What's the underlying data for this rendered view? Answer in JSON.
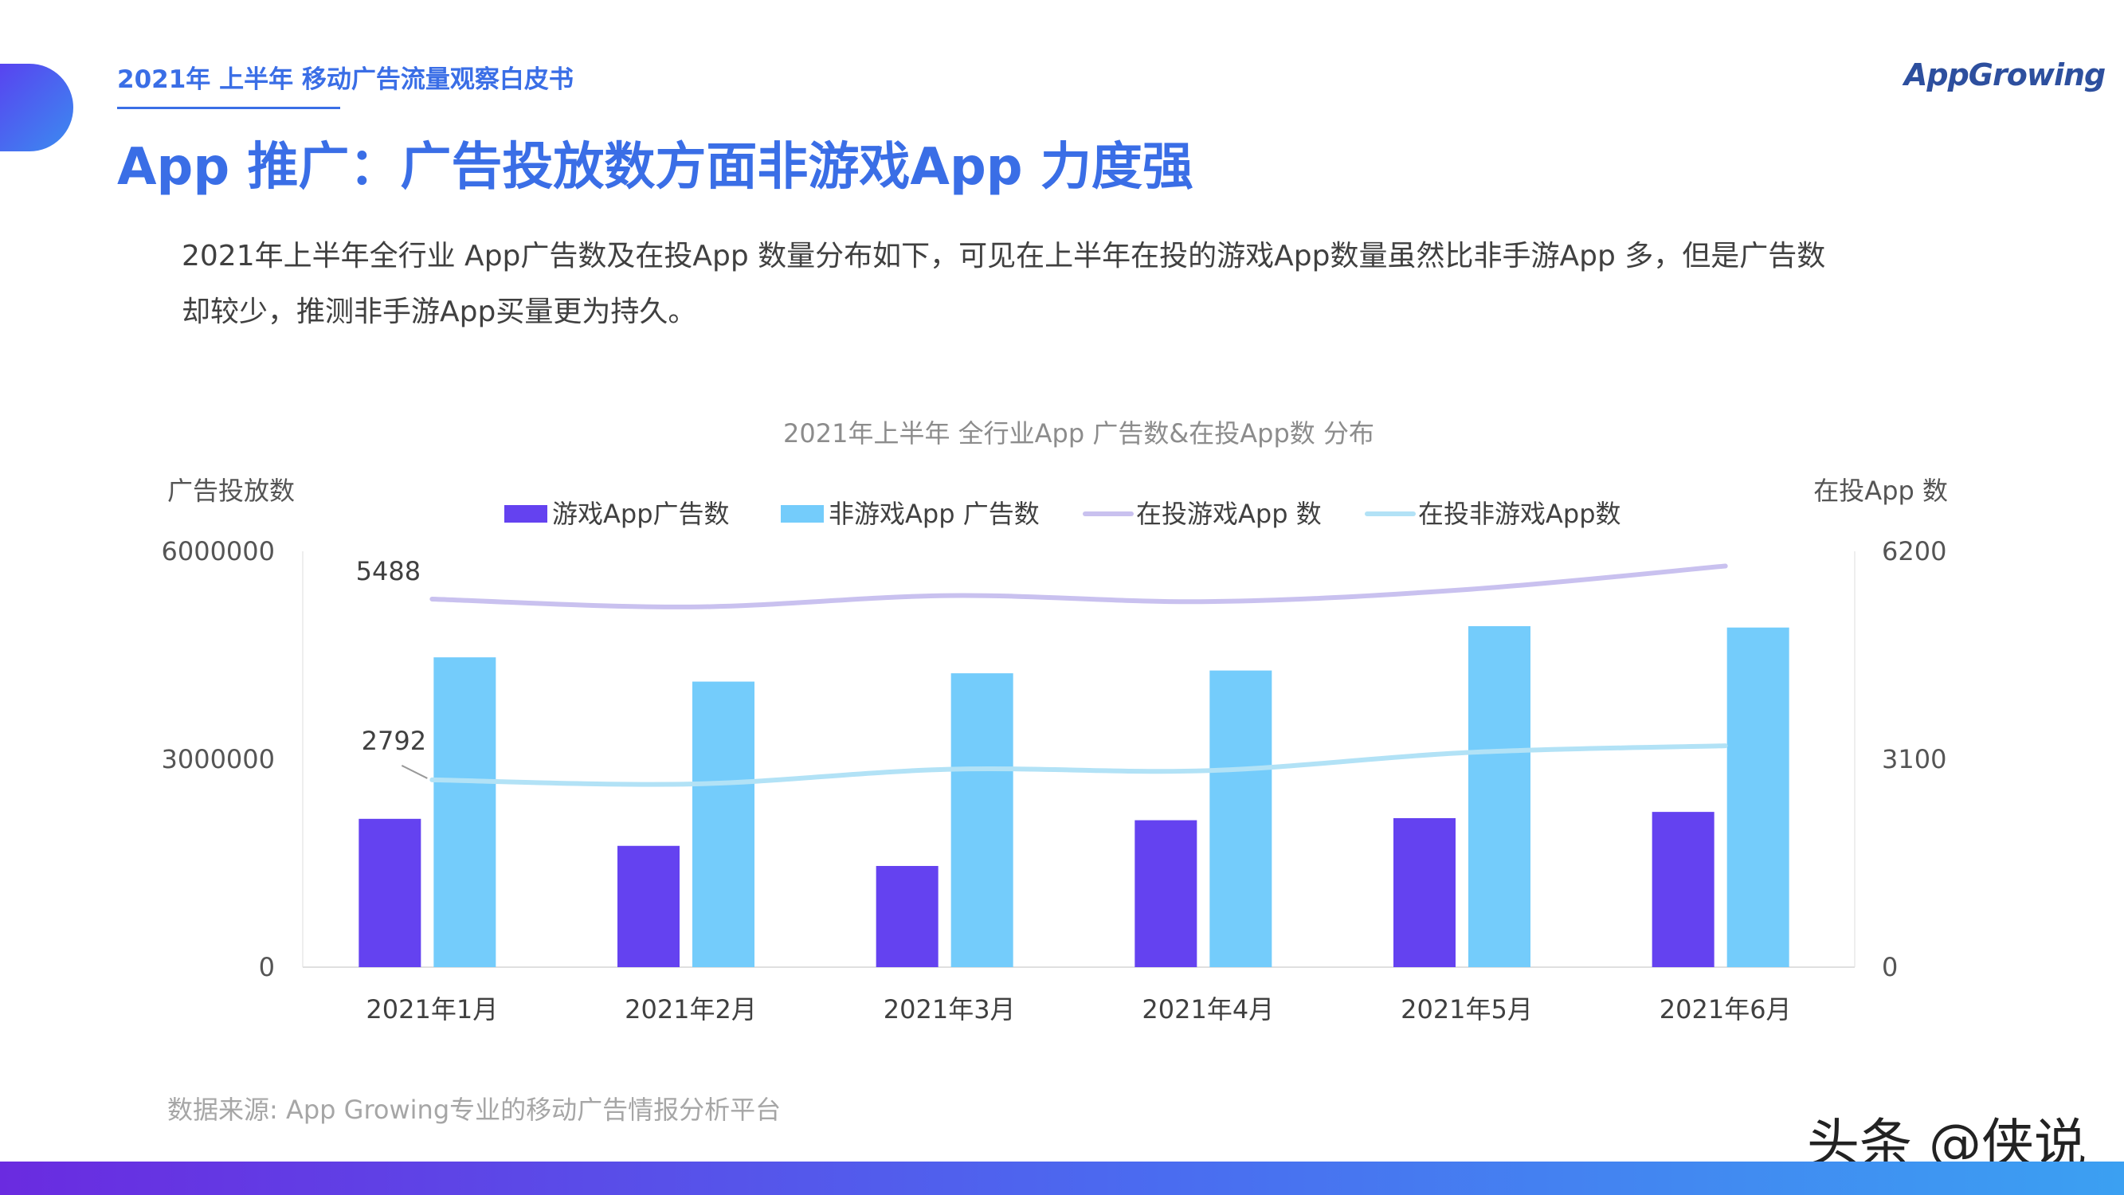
{
  "header": {
    "report_label": "2021年 上半年 移动广告流量观察白皮书",
    "brand": "AppGrowing",
    "page_title": "App 推广：广告投放数方面非游戏App 力度强"
  },
  "description": {
    "line1": "2021年上半年全行业 App广告数及在投App 数量分布如下，可见在上半年在投的游戏App数量虽然比非手游App 多，但是广告数",
    "line2": "却较少，推测非手游App买量更为持久。"
  },
  "chart_data": {
    "type": "bar",
    "title": "2021年上半年 全行业App 广告数&在投App数 分布",
    "ylabel": "广告投放数",
    "y2label": "在投App 数",
    "ylim": [
      0,
      6000000
    ],
    "y2lim": [
      0,
      6200
    ],
    "yticks": [
      "6000000",
      "3000000",
      "0"
    ],
    "y2ticks": [
      "6200",
      "3100",
      "0"
    ],
    "categories": [
      "2021年1月",
      "2021年2月",
      "2021年3月",
      "2021年4月",
      "2021年5月",
      "2021年6月"
    ],
    "series": [
      {
        "name": "游戏App广告数",
        "kind": "bar",
        "axis": "left",
        "color": "#6442f0",
        "values": [
          2140000,
          1750000,
          1460000,
          2120000,
          2150000,
          2240000
        ]
      },
      {
        "name": "非游戏App 广告数",
        "kind": "bar",
        "axis": "left",
        "color": "#74ccfb",
        "values": [
          4470000,
          4120000,
          4240000,
          4280000,
          4920000,
          4900000
        ]
      },
      {
        "name": "在投游戏App 数",
        "kind": "line",
        "axis": "right",
        "color": "#c9c1ef",
        "values": [
          5488,
          5370,
          5540,
          5450,
          5630,
          5980
        ]
      },
      {
        "name": "在投非游戏App数",
        "kind": "line",
        "axis": "right",
        "color": "#b2e2f6",
        "values": [
          2792,
          2730,
          2950,
          2930,
          3200,
          3300
        ]
      }
    ],
    "annotations": [
      "5488",
      "2792"
    ],
    "grid": false,
    "legend": "top"
  },
  "footer": {
    "source": "数据来源: App Growing专业的移动广告情报分析平台",
    "watermark": "头条 @侠说"
  }
}
